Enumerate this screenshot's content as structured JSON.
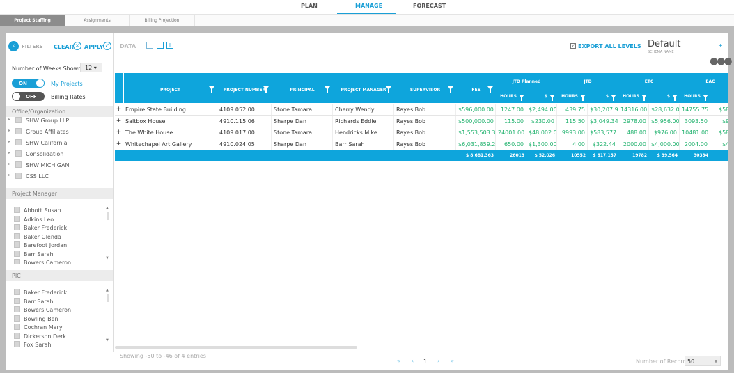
{
  "nav": {
    "tabs": [
      "PLAN",
      "MANAGE",
      "FORECAST"
    ],
    "subtabs": [
      "Project Staffing",
      "Assignments",
      "Billing Projection"
    ]
  },
  "filters": {
    "title": "FILTERS",
    "clear": "CLEAR",
    "apply": "APPLY",
    "weeks_label": "Number of Weeks Shown",
    "weeks_value": "12",
    "toggles": [
      {
        "state": "ON",
        "label": "My Projects"
      },
      {
        "state": "OFF",
        "label": "Billing Rates"
      }
    ],
    "sections": [
      {
        "title": "Office/Organization",
        "items": [
          "SHW Group LLP",
          "Group Affiliates",
          "SHW California",
          "Consolidation",
          "SHW MICHIGAN",
          "CSS LLC"
        ]
      },
      {
        "title": "Project Manager",
        "items": [
          "Abbott Susan",
          "Adkins Leo",
          "Baker Frederick",
          "Baker Glenda",
          "Barefoot Jordan",
          "Barr Sarah",
          "Bowers Cameron"
        ]
      },
      {
        "title": "PIC",
        "items": [
          "Baker Frederick",
          "Barr Sarah",
          "Bowers Cameron",
          "Bowling Ben",
          "Cochran Mary",
          "Dickerson Derk",
          "Fox Sarah"
        ]
      }
    ]
  },
  "toolbar": {
    "data": "DATA",
    "export": "EXPORT ALL LEVELS",
    "schema": "Default",
    "schema_label": "SCHEMA NAME"
  },
  "table": {
    "columns": [
      "PROJECT",
      "PROJECT NUMBER",
      "PRINCIPAL",
      "PROJECT MANAGER",
      "SUPERVISOR",
      "FEE"
    ],
    "groups": [
      "JTD Planned",
      "JTD",
      "ETC",
      "EAC"
    ],
    "sub_columns": [
      "HOURS",
      "$"
    ],
    "rows": [
      [
        "Empire State Building",
        "4109.052.00",
        "Stone Tamara",
        "Cherry Wendy",
        "Rayes Bob",
        "$596,000.00",
        "1247.00",
        "$2,494.00",
        "439.75",
        "$30,207.94",
        "14316.00",
        "$28,632.00",
        "14755.75",
        "$58,83"
      ],
      [
        "Saltbox House",
        "4910.115.06",
        "Sharpe Dan",
        "Richards Eddie",
        "Rayes Bob",
        "$500,000.00",
        "115.00",
        "$230.00",
        "115.50",
        "$3,049.34",
        "2978.00",
        "$5,956.00",
        "3093.50",
        "$9,00"
      ],
      [
        "The White House",
        "4109.017.00",
        "Stone Tamara",
        "Hendricks Mike",
        "Rayes Bob",
        "$1,553,503.32",
        "24001.00",
        "$48,002.00",
        "9993.00",
        "$583,577.00",
        "488.00",
        "$976.00",
        "10481.00",
        "$584,5"
      ],
      [
        "Whitechapel Art Gallery",
        "4910.024.05",
        "Sharpe Dan",
        "Barr Sarah",
        "Rayes Bob",
        "$6,031,859.28",
        "650.00",
        "$1,300.00",
        "4.00",
        "$322.44",
        "2000.00",
        "$4,000.00",
        "2004.00",
        "$4,32"
      ]
    ],
    "totals": [
      "$ 8,681,363",
      "26013",
      "$ 52,026",
      "10552",
      "$ 617,157",
      "19782",
      "$ 39,564",
      "30334",
      "$ 65"
    ]
  },
  "footer": {
    "showing": "Showing -50 to -46 of 4 entries",
    "page": "1",
    "records_label": "Number of Records:",
    "records_value": "50"
  }
}
